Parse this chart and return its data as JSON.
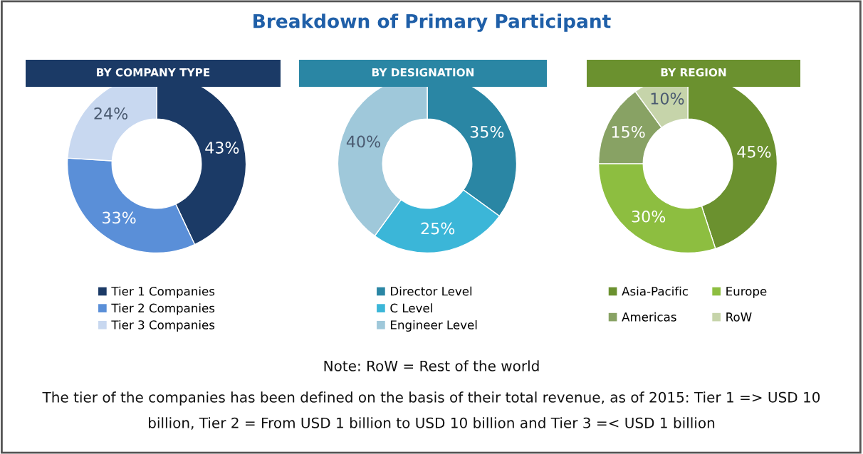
{
  "chart_data": [
    {
      "type": "donut",
      "title": "BY COMPANY TYPE",
      "categories": [
        "Tier 1 Companies",
        "Tier 2 Companies",
        "Tier 3 Companies"
      ],
      "values": [
        43,
        33,
        24
      ],
      "value_labels": [
        "43%",
        "33%",
        "24%"
      ],
      "colors": [
        "#1b3a66",
        "#5a8fd8",
        "#c8d8f0"
      ],
      "legend": "bottom"
    },
    {
      "type": "donut",
      "title": "BY DESIGNATION",
      "categories": [
        "Director Level",
        "C Level",
        "Engineer Level"
      ],
      "values": [
        35,
        25,
        40
      ],
      "value_labels": [
        "35%",
        "25%",
        "40%"
      ],
      "colors": [
        "#2a86a4",
        "#3bb6d8",
        "#9fc8da"
      ],
      "legend": "bottom"
    },
    {
      "type": "donut",
      "title": "BY REGION",
      "categories": [
        "Asia-Pacific",
        "Europe",
        "Americas",
        "RoW"
      ],
      "values": [
        45,
        30,
        15,
        10
      ],
      "value_labels": [
        "45%",
        "30%",
        "15%",
        "10%"
      ],
      "colors": [
        "#6b912f",
        "#8dbe40",
        "#88a264",
        "#c6d4aa"
      ],
      "legend": "bottom"
    },
    {
      "type": "other",
      "title": "Breakdown of Primary Participant",
      "annotations": [
        "Note: RoW = Rest of the world",
        "The tier of the companies has been defined on the basis of their total revenue, as of 2015: Tier 1 => USD 10",
        "billion, Tier 2 = From USD 1 billion to USD 10 billion and Tier 3 =< USD 1 billion"
      ]
    }
  ]
}
